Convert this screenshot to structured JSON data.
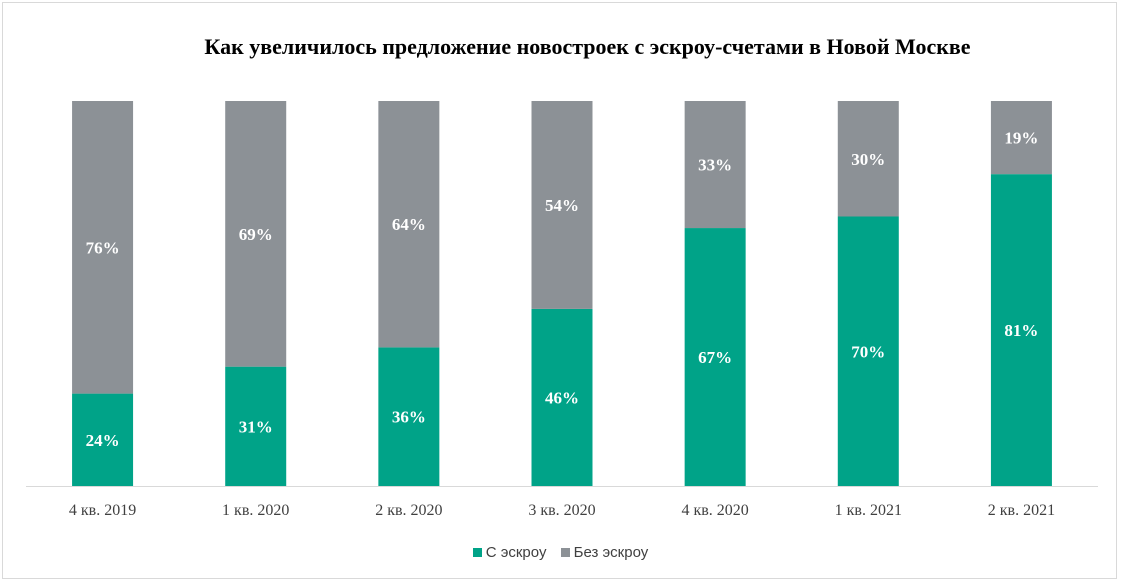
{
  "chart_data": {
    "type": "bar",
    "stacked": true,
    "title": "Как увеличилось предложение новостроек  с эскроу-счетами  в Новой  Москве",
    "categories": [
      "4 кв. 2019",
      "1 кв. 2020",
      "2 кв. 2020",
      "3 кв. 2020",
      "4 кв. 2020",
      "1 кв. 2021",
      "2 кв. 2021"
    ],
    "series": [
      {
        "name": "С эскроу",
        "values": [
          24,
          31,
          36,
          46,
          67,
          70,
          81
        ],
        "labels": [
          "24%",
          "31%",
          "36%",
          "46%",
          "67%",
          "70%",
          "81%"
        ],
        "color": "#00a388"
      },
      {
        "name": "Без эскроу",
        "values": [
          76,
          69,
          64,
          54,
          33,
          30,
          19
        ],
        "labels": [
          "76%",
          "69%",
          "64%",
          "54%",
          "33%",
          "30%",
          "19%"
        ],
        "color": "#8c9196"
      }
    ],
    "ylim": [
      0,
      100
    ],
    "grid": false,
    "legend_position": "bottom"
  }
}
